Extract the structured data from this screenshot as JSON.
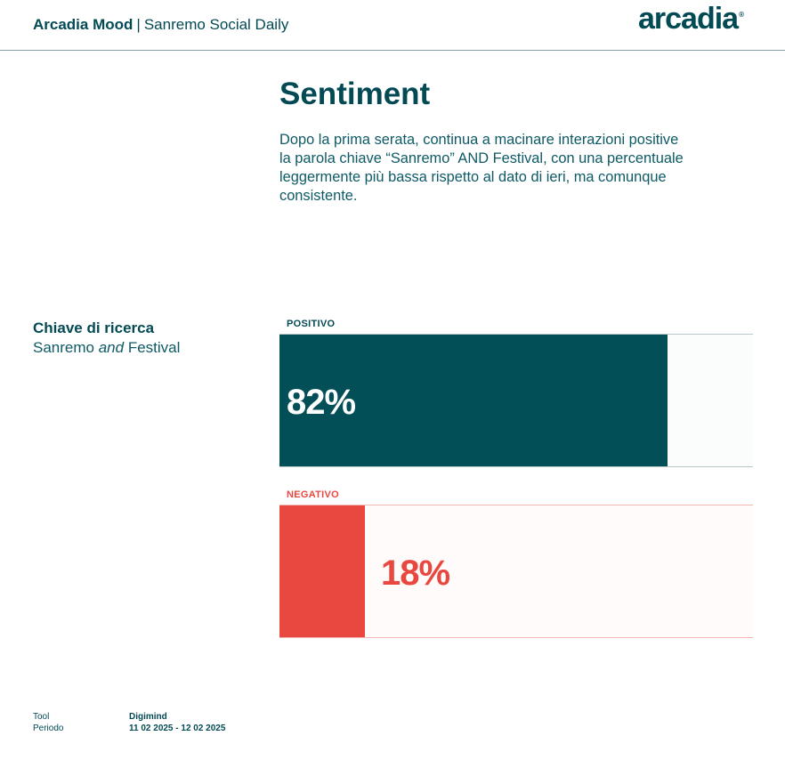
{
  "header": {
    "brand_bold": "Arcadia Mood",
    "separator": "|",
    "brand_sub": "Sanremo Social Daily",
    "logo_text": "arcadia",
    "logo_mark": "®"
  },
  "main": {
    "title": "Sentiment",
    "lead": "Dopo la prima serata, continua a macinare interazioni positive la parola chiave “Sanremo” AND Festival, con una percentuale leggermente più bassa rispetto al dato di ieri, ma comunque consistente."
  },
  "search_key": {
    "label": "Chiave di ricerca",
    "term_before": "Sanremo",
    "term_connector": "and",
    "term_after": "Festival"
  },
  "chart_data": {
    "type": "bar",
    "categories": [
      "POSITIVO",
      "NEGATIVO"
    ],
    "values": [
      82,
      18
    ],
    "value_labels": [
      "82%",
      "18%"
    ],
    "ylim": [
      0,
      100
    ],
    "colors": [
      "#034f58",
      "#e8483f"
    ]
  },
  "footer": {
    "tool_label": "Tool",
    "tool_value": "Digimind",
    "period_label": "Periodo",
    "period_value": "11 02 2025 - 12 02 2025"
  }
}
